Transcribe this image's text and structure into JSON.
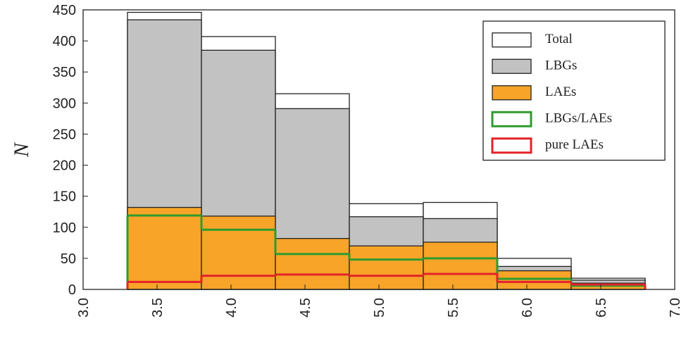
{
  "chart_data": {
    "type": "histogram",
    "ylabel": "N",
    "bins": [
      3.3,
      3.8,
      4.3,
      4.8,
      5.3,
      5.8,
      6.3,
      6.8
    ],
    "series": [
      {
        "name": "Total",
        "histtype": "bar",
        "color": "#ffffff",
        "edgecolor": "#222222",
        "values": [
          446,
          407,
          315,
          138,
          140,
          50,
          18
        ]
      },
      {
        "name": "LBGs",
        "histtype": "bar",
        "color": "#c2c2c2",
        "edgecolor": "#222222",
        "values": [
          434,
          385,
          291,
          117,
          114,
          37,
          15
        ]
      },
      {
        "name": "LAEs",
        "histtype": "bar",
        "color": "#f7a428",
        "edgecolor": "#222222",
        "values": [
          132,
          118,
          82,
          70,
          76,
          30,
          10
        ]
      },
      {
        "name": "LBGs/LAEs",
        "histtype": "step",
        "color": "#2f9a2f",
        "values": [
          119,
          96,
          57,
          48,
          50,
          17,
          6
        ]
      },
      {
        "name": "pure LAEs",
        "histtype": "step",
        "color": "#e3222a",
        "values": [
          12,
          22,
          24,
          22,
          25,
          12,
          8
        ]
      }
    ],
    "xlim": [
      3.0,
      7.0
    ],
    "xticks": [
      {
        "value": 3,
        "label": "3.0"
      },
      3.5,
      {
        "value": 4,
        "label": "4.0"
      },
      4.5,
      {
        "value": 5,
        "label": "5.0"
      },
      5.5,
      {
        "value": 6,
        "label": "6.0"
      },
      6.5,
      {
        "value": 7,
        "label": "7.0"
      }
    ],
    "ylim": [
      0,
      450
    ],
    "yticks": [
      0,
      50,
      100,
      150,
      200,
      250,
      300,
      350,
      400,
      450
    ],
    "legend": "upper right"
  }
}
